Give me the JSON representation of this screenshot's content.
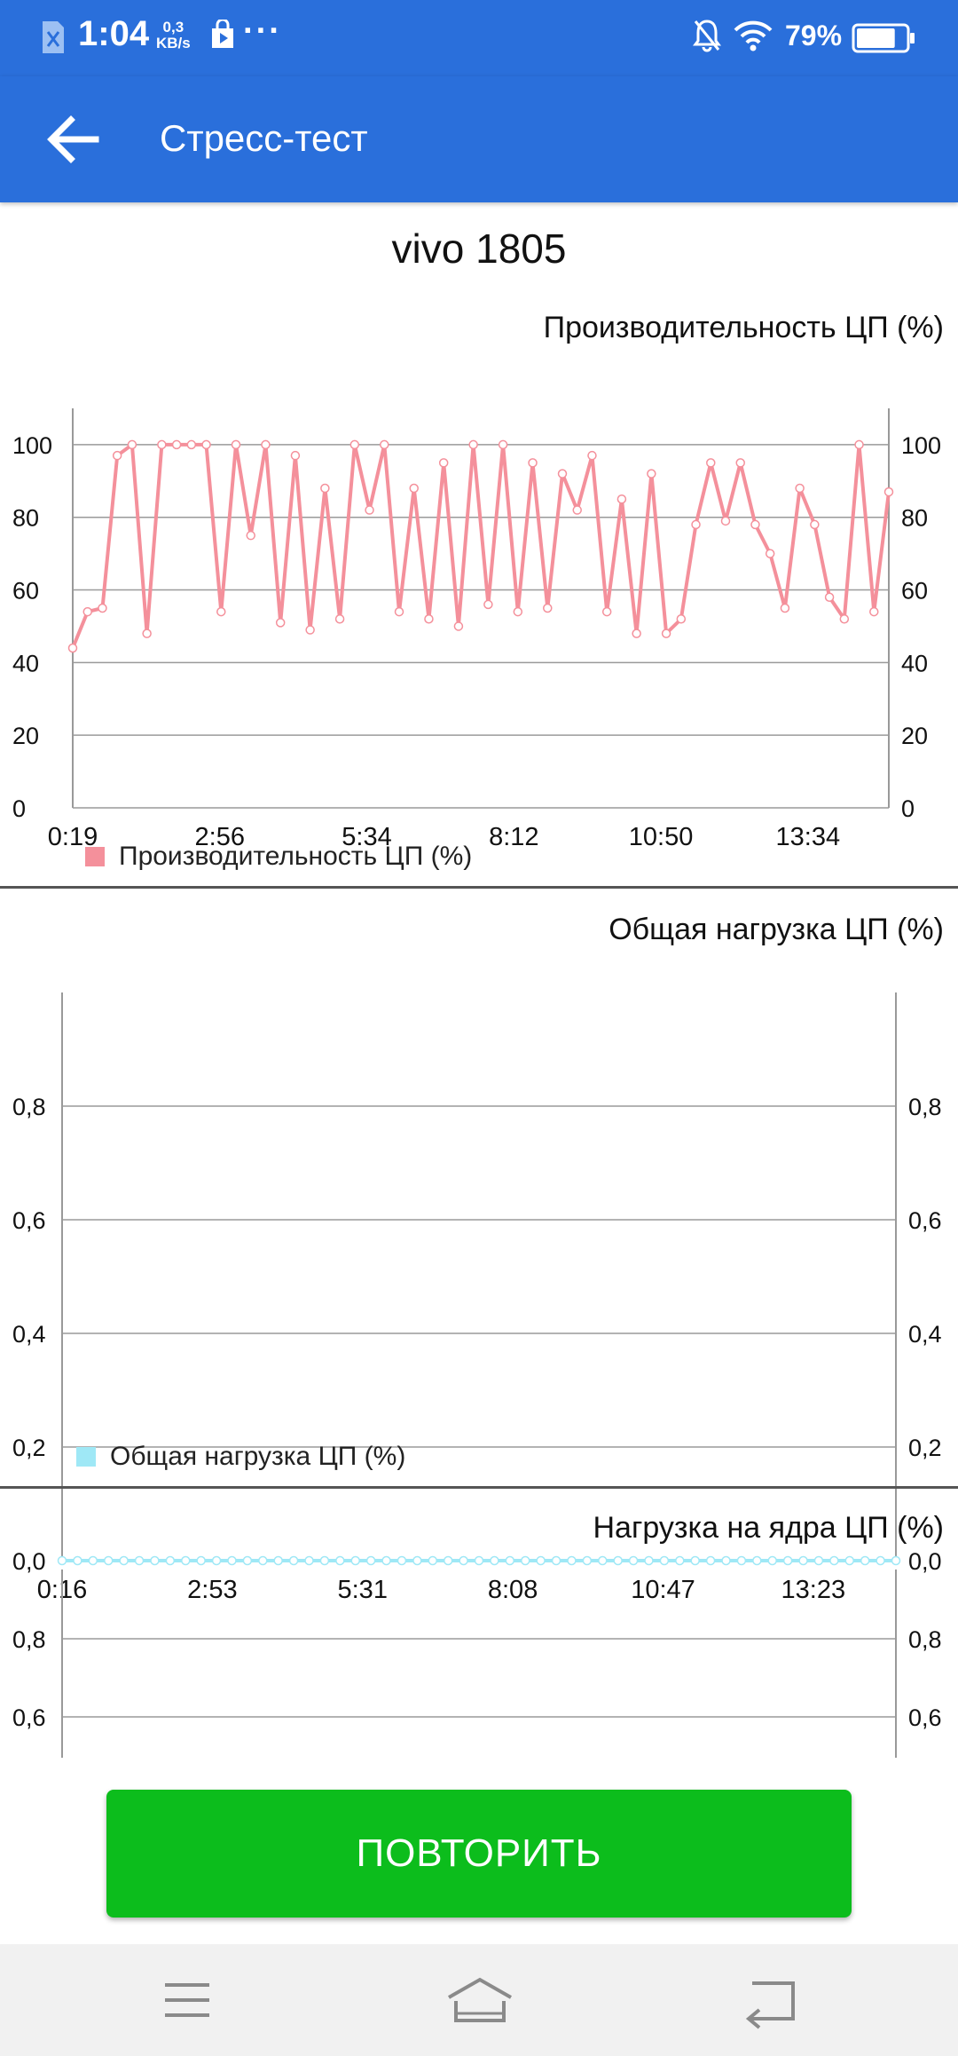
{
  "status_bar": {
    "time": "1:04",
    "speed_value": "0,3",
    "speed_unit": "KB/s",
    "more": "···",
    "battery_percent": "79%",
    "battery_level": 0.79,
    "icons": [
      "sim-icon",
      "store-icon",
      "bell-off-icon",
      "wifi-icon",
      "battery-icon"
    ]
  },
  "app_bar": {
    "title": "Стресс-тест",
    "back_icon": "arrow-left-icon"
  },
  "colors": {
    "primary": "#2a6fdb",
    "cpu_line": "#f4909b",
    "load_line": "#9fe8f6",
    "button": "#0cbd1c"
  },
  "device_name": "vivo 1805",
  "charts": {
    "performance": {
      "title": "Производительность ЦП (%)",
      "legend": "Производительность ЦП (%)"
    },
    "total_load": {
      "title": "Общая нагрузка ЦП (%)",
      "legend": "Общая нагрузка ЦП (%)"
    },
    "core_load": {
      "title": "Нагрузка на ядра ЦП (%)"
    }
  },
  "chart_data": [
    {
      "type": "line",
      "title": "Производительность ЦП (%)",
      "x_tick_labels": [
        "0:19",
        "2:56",
        "5:34",
        "8:12",
        "10:50",
        "13:34"
      ],
      "y_ticks": [
        "0",
        "20",
        "40",
        "60",
        "80",
        "100"
      ],
      "ylim": [
        0,
        110
      ],
      "grid": true,
      "legend_position": "bottom-left",
      "series": [
        {
          "name": "Производительность ЦП (%)",
          "color": "#f4909b",
          "values": [
            44,
            54,
            55,
            97,
            100,
            48,
            100,
            100,
            100,
            100,
            54,
            100,
            75,
            100,
            51,
            97,
            49,
            88,
            52,
            100,
            82,
            100,
            54,
            88,
            52,
            95,
            50,
            100,
            56,
            100,
            54,
            95,
            55,
            92,
            82,
            97,
            54,
            85,
            48,
            92,
            48,
            52,
            78,
            95,
            79,
            95,
            78,
            70,
            55,
            88,
            78,
            58,
            52,
            100,
            54,
            87
          ]
        }
      ]
    },
    {
      "type": "line",
      "title": "Общая нагрузка ЦП (%)",
      "x_tick_labels": [
        "0:16",
        "2:53",
        "5:31",
        "8:08",
        "10:47",
        "13:23"
      ],
      "y_ticks": [
        "0,0",
        "0,2",
        "0,4",
        "0,6",
        "0,8"
      ],
      "ylim": [
        0,
        1.0
      ],
      "grid": true,
      "legend_position": "bottom-left",
      "series": [
        {
          "name": "Общая нагрузка ЦП (%)",
          "color": "#9fe8f6",
          "values": [
            0,
            0,
            0,
            0,
            0,
            0,
            0,
            0,
            0,
            0,
            0,
            0,
            0,
            0,
            0,
            0,
            0,
            0,
            0,
            0,
            0,
            0,
            0,
            0,
            0,
            0,
            0,
            0,
            0,
            0,
            0,
            0,
            0,
            0,
            0,
            0,
            0,
            0,
            0,
            0,
            0,
            0,
            0,
            0,
            0,
            0,
            0,
            0,
            0,
            0,
            0,
            0,
            0,
            0,
            0
          ]
        }
      ]
    },
    {
      "type": "line",
      "title": "Нагрузка на ядра ЦП (%)",
      "y_ticks": [
        "0,6",
        "0,8"
      ],
      "ylim": [
        0,
        1.0
      ],
      "grid": true,
      "series": []
    }
  ],
  "button": {
    "label": "ПОВТОРИТЬ"
  },
  "nav_bar": {
    "icons": [
      "menu-icon",
      "home-icon",
      "back-icon"
    ]
  }
}
